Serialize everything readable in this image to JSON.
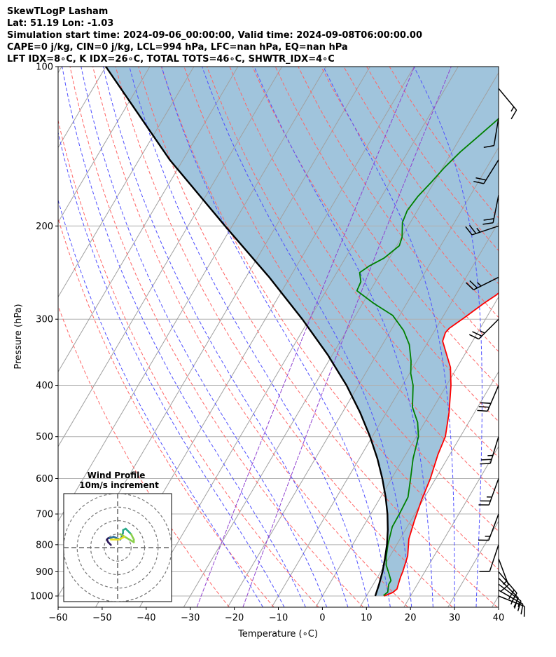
{
  "title_lines": [
    "SkewTLogP Lasham",
    "Lat: 51.19   Lon: -1.03",
    "Simulation start time: 2024-09-06_00:00:00, Valid time: 2024-09-08T06:00:00.00",
    "CAPE=0 j/kg, CIN=0 j/kg, LCL=994 hPa, LFC=nan hPa, EQ=nan hPa",
    "LFT IDX=8∘C, K IDX=26∘C, TOTAL TOTS=46∘C, SHWTR_IDX=4∘C"
  ],
  "chart_data": {
    "type": "line",
    "subtype": "skew-t log-p",
    "xlabel": "Temperature (∘C)",
    "ylabel": "Pressure (hPa)",
    "xlim": [
      -60,
      40
    ],
    "ylim": [
      1050,
      100
    ],
    "yscale": "log",
    "x_ticks": [
      "−60",
      "−50",
      "−40",
      "−30",
      "−20",
      "−10",
      "0",
      "10",
      "20",
      "30",
      "40"
    ],
    "x_tick_values": [
      -60,
      -50,
      -40,
      -30,
      -20,
      -10,
      0,
      10,
      20,
      30,
      40
    ],
    "y_ticks": [
      "100",
      "200",
      "300",
      "400",
      "500",
      "600",
      "700",
      "800",
      "900",
      "1000"
    ],
    "y_tick_values": [
      100,
      200,
      300,
      400,
      500,
      600,
      700,
      800,
      900,
      1000
    ],
    "grid": true,
    "colors": {
      "temperature": "#ff0000",
      "dewpoint": "#008000",
      "parcel": "#000000",
      "shading": "#a0c4dc",
      "dry_adiabat": "#ff6666",
      "moist_adiabat": "#5050ff",
      "mixing_ratio": "#9040d0",
      "isotherm": "#a0a0a0"
    },
    "series": [
      {
        "key": "temperature",
        "points": [
          [
            14,
            1000
          ],
          [
            15.5,
            985
          ],
          [
            16,
            970
          ],
          [
            15.5,
            940
          ],
          [
            15.2,
            920
          ],
          [
            15,
            900
          ],
          [
            14,
            840
          ],
          [
            12,
            780
          ],
          [
            10.8,
            720
          ],
          [
            9.7,
            660
          ],
          [
            8.8,
            600
          ],
          [
            7.3,
            540
          ],
          [
            6.6,
            500
          ],
          [
            4.2,
            450
          ],
          [
            1,
            400
          ],
          [
            -1.5,
            370
          ],
          [
            -6.8,
            330
          ],
          [
            -7.3,
            318
          ],
          [
            -7,
            312
          ],
          [
            -5,
            298
          ],
          [
            -2.5,
            280
          ],
          [
            -0.8,
            270
          ],
          [
            0.8,
            258
          ],
          [
            3.2,
            233
          ],
          [
            5.4,
            213
          ],
          [
            7.5,
            193
          ],
          [
            8.2,
            180
          ],
          [
            9.3,
            163
          ],
          [
            10.7,
            147
          ],
          [
            12.8,
            133
          ],
          [
            14.3,
            125
          ],
          [
            15.1,
            118
          ],
          [
            15.4,
            110
          ],
          [
            15.8,
            106
          ],
          [
            17,
            100
          ]
        ]
      },
      {
        "key": "dewpoint",
        "points": [
          [
            13.8,
            998
          ],
          [
            14.3,
            983
          ],
          [
            13.5,
            950
          ],
          [
            13.5,
            935
          ],
          [
            12,
            905
          ],
          [
            10.4,
            875
          ],
          [
            9.3,
            845
          ],
          [
            8,
            800
          ],
          [
            6.6,
            740
          ],
          [
            6.5,
            700
          ],
          [
            6.2,
            650
          ],
          [
            4.3,
            600
          ],
          [
            2.2,
            550
          ],
          [
            0.5,
            500
          ],
          [
            -1.6,
            470
          ],
          [
            -4.8,
            440
          ],
          [
            -7.6,
            400
          ],
          [
            -9.7,
            380
          ],
          [
            -11.3,
            360
          ],
          [
            -13.9,
            335
          ],
          [
            -17.1,
            315
          ],
          [
            -21.6,
            295
          ],
          [
            -27.5,
            280
          ],
          [
            -33,
            265
          ],
          [
            -33.3,
            255
          ],
          [
            -34.8,
            245
          ],
          [
            -33.5,
            238
          ],
          [
            -31.2,
            230
          ],
          [
            -29.4,
            218
          ],
          [
            -29.9,
            210
          ],
          [
            -31.8,
            197
          ],
          [
            -32.3,
            187
          ],
          [
            -31.8,
            176
          ],
          [
            -30.6,
            165
          ],
          [
            -29.6,
            155
          ],
          [
            -28.1,
            145
          ],
          [
            -26,
            135
          ],
          [
            -23.5,
            124
          ],
          [
            -21.8,
            117
          ],
          [
            -19.9,
            107
          ],
          [
            -18.6,
            100
          ]
        ]
      },
      {
        "key": "parcel",
        "points": [
          [
            12,
            1000
          ],
          [
            11.3,
            950
          ],
          [
            10.4,
            900
          ],
          [
            9.2,
            850
          ],
          [
            7.8,
            800
          ],
          [
            6,
            750
          ],
          [
            3.8,
            700
          ],
          [
            1.1,
            650
          ],
          [
            -2.1,
            600
          ],
          [
            -5.9,
            550
          ],
          [
            -10.5,
            500
          ],
          [
            -16,
            450
          ],
          [
            -22.7,
            400
          ],
          [
            -31.1,
            350
          ],
          [
            -41.6,
            300
          ],
          [
            -54.7,
            250
          ],
          [
            -71.6,
            200
          ],
          [
            -93,
            150
          ],
          [
            -120,
            100
          ]
        ]
      }
    ],
    "dry_adiabats_theta_k": [
      250,
      260,
      270,
      280,
      290,
      300,
      310,
      320,
      330,
      340,
      350,
      360,
      370,
      380,
      390,
      400,
      410,
      420
    ],
    "moist_adiabats_start_c_at_1000": [
      -15,
      -10,
      -5,
      0,
      5,
      10,
      15,
      20,
      25,
      30,
      35
    ],
    "mixing_ratio_lines_g_per_kg": [
      0.4,
      1.0
    ],
    "wind_barbs": [
      {
        "p": 1000,
        "u": -5,
        "v": 2
      },
      {
        "p": 975,
        "u": -7,
        "v": 4
      },
      {
        "p": 950,
        "u": -8,
        "v": 6
      },
      {
        "p": 925,
        "u": -7,
        "v": 7
      },
      {
        "p": 900,
        "u": -6,
        "v": 7
      },
      {
        "p": 850,
        "u": -3,
        "v": 8
      },
      {
        "p": 800,
        "u": 2,
        "v": 6
      },
      {
        "p": 700,
        "u": 3,
        "v": 8
      },
      {
        "p": 600,
        "u": 4,
        "v": 11
      },
      {
        "p": 500,
        "u": 4,
        "v": 13
      },
      {
        "p": 400,
        "u": 6,
        "v": 14
      },
      {
        "p": 300,
        "u": 10,
        "v": 10
      },
      {
        "p": 250,
        "u": 12,
        "v": 6
      },
      {
        "p": 200,
        "u": 12,
        "v": 4
      },
      {
        "p": 175,
        "u": 2,
        "v": 10
      },
      {
        "p": 150,
        "u": 5,
        "v": 8
      },
      {
        "p": 125,
        "u": 1,
        "v": 6
      },
      {
        "p": 110,
        "u": -5,
        "v": 6
      }
    ],
    "hodograph": {
      "title": "Wind Profile",
      "subtitle": "10m/s increment",
      "ring_radii_ms": [
        10,
        20,
        30,
        40
      ],
      "range_ms": 40,
      "colors": [
        "#2d1a5a",
        "#2a6f9a",
        "#2aaa8a",
        "#8ad04a",
        "#e8e020"
      ],
      "points": [
        [
          -5,
          2
        ],
        [
          -7,
          4
        ],
        [
          -8,
          6
        ],
        [
          -7,
          7
        ],
        [
          -6,
          7
        ],
        [
          -3,
          8
        ],
        [
          2,
          6
        ],
        [
          3,
          8
        ],
        [
          4,
          11
        ],
        [
          4,
          13
        ],
        [
          6,
          14
        ],
        [
          10,
          10
        ],
        [
          12,
          6
        ],
        [
          12,
          4
        ],
        [
          2,
          10
        ],
        [
          5,
          8
        ],
        [
          1,
          6
        ],
        [
          -5,
          6
        ]
      ]
    }
  }
}
